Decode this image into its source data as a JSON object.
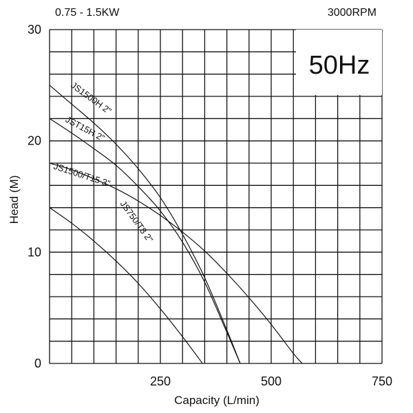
{
  "header": {
    "power": "0.75 - 1.5KW",
    "speed": "3000RPM"
  },
  "frequency_badge": "50Hz",
  "chart_data": {
    "type": "line",
    "xlabel": "Capacity (L/min)",
    "ylabel": "Head  (M)",
    "xlim": [
      0,
      750
    ],
    "ylim": [
      0,
      30
    ],
    "x_ticks": [
      {
        "value": 250,
        "label": "250"
      },
      {
        "value": 500,
        "label": "500"
      },
      {
        "value": 750,
        "label": "750"
      }
    ],
    "y_ticks": [
      {
        "value": 0,
        "label": "0"
      },
      {
        "value": 10,
        "label": "10"
      },
      {
        "value": 20,
        "label": "20"
      },
      {
        "value": 30,
        "label": "30"
      }
    ],
    "grid": true,
    "grid_x_step": 50,
    "grid_y_step": 2,
    "series": [
      {
        "name": "JS1500H 2\"",
        "x": [
          0,
          50,
          100,
          150,
          200,
          250,
          300,
          350,
          400,
          430
        ],
        "y": [
          25,
          23.3,
          21.6,
          19.7,
          17.5,
          14.9,
          11.6,
          7.7,
          3.0,
          0
        ]
      },
      {
        "name": "JST15H 2\"",
        "x": [
          0,
          50,
          100,
          150,
          200,
          250,
          300,
          350,
          400,
          430
        ],
        "y": [
          22,
          20.7,
          19.3,
          17.8,
          15.9,
          13.7,
          10.9,
          7.3,
          2.8,
          0
        ]
      },
      {
        "name": "JS1500/T15 3\"",
        "x": [
          0,
          50,
          100,
          150,
          200,
          250,
          300,
          350,
          400,
          450,
          500,
          550,
          570
        ],
        "y": [
          18,
          17.4,
          16.6,
          15.7,
          14.6,
          13.3,
          11.8,
          10.1,
          8.1,
          5.9,
          3.5,
          0.9,
          0
        ]
      },
      {
        "name": "JS750/T8 2\"",
        "x": [
          0,
          50,
          100,
          150,
          200,
          250,
          300,
          345
        ],
        "y": [
          14,
          12.6,
          11.0,
          9.2,
          7.2,
          4.9,
          2.4,
          0
        ]
      }
    ]
  }
}
